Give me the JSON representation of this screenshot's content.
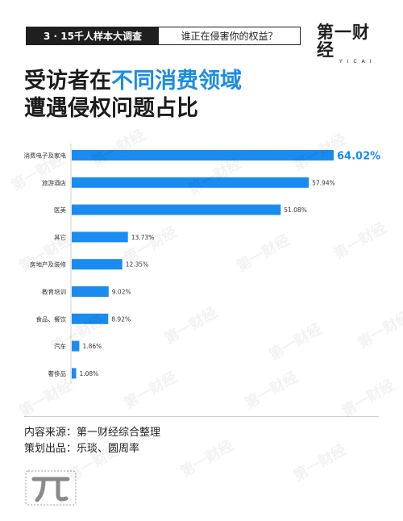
{
  "header": {
    "tag_dark": "3 · 15千人样本大调查",
    "tag_light": "谁正在侵害你的权益？",
    "logo_cn": "第一财经",
    "logo_en": "YICAI",
    "watermark": "第一财经"
  },
  "title": {
    "prefix": "受访者在",
    "highlight": "不同消费领域",
    "line2": "遭遇侵权问题占比"
  },
  "chart_data": {
    "type": "bar",
    "orientation": "horizontal",
    "categories": [
      "消费电子及家电",
      "旅游酒店",
      "医美",
      "其它",
      "房地产及装修",
      "教育培训",
      "食品、餐饮",
      "汽车",
      "奢侈品"
    ],
    "values": [
      64.02,
      57.94,
      51.08,
      13.73,
      12.35,
      9.02,
      8.92,
      1.86,
      1.08
    ],
    "value_labels": [
      "64.02%",
      "57.94%",
      "51.08%",
      "13.73%",
      "12.35%",
      "9.02%",
      "8.92%",
      "1.86%",
      "1.08%"
    ],
    "bar_color": "#1a8cf0",
    "highlight_label_color": "#1a8cf0",
    "xlim": [
      0,
      64.02
    ],
    "title": "",
    "xlabel": "",
    "ylabel": "",
    "grid": false,
    "legend": "none"
  },
  "footer": {
    "source": "内容来源：第一财经综合整理",
    "producer": "策划出品：乐琰、圆周率"
  }
}
